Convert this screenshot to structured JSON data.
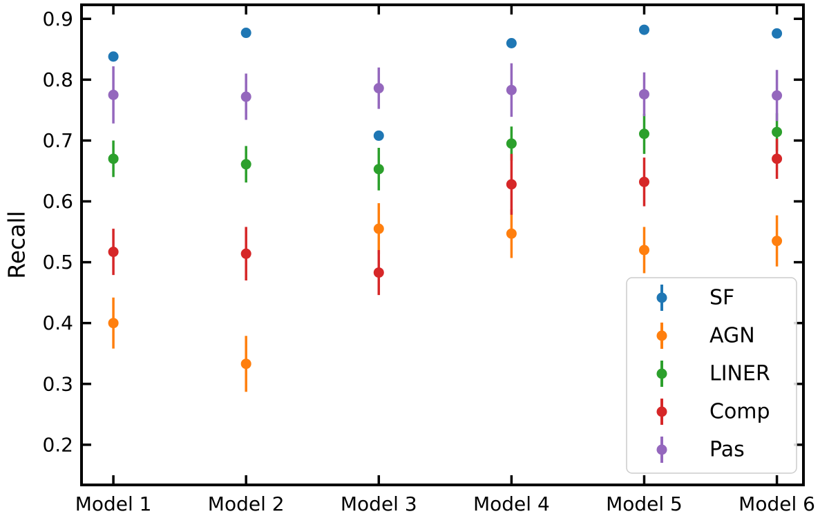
{
  "figure": {
    "ylabel": "Recall",
    "xlabel": ""
  },
  "chart_data": {
    "type": "scatter",
    "title": "",
    "xlabel": "",
    "ylabel": "Recall",
    "categories": [
      "Model 1",
      "Model 2",
      "Model 3",
      "Model 4",
      "Model 5",
      "Model 6"
    ],
    "series": [
      {
        "name": "SF",
        "color": "#1f77b4",
        "values": [
          0.838,
          0.877,
          0.708,
          0.86,
          0.882,
          0.876
        ],
        "errors": [
          0.008,
          0.008,
          0.008,
          0.008,
          0.008,
          0.008
        ]
      },
      {
        "name": "AGN",
        "color": "#ff7f0e",
        "values": [
          0.4,
          0.333,
          0.555,
          0.547,
          0.52,
          0.535
        ],
        "errors": [
          0.042,
          0.046,
          0.042,
          0.04,
          0.038,
          0.042
        ]
      },
      {
        "name": "LINER",
        "color": "#2ca02c",
        "values": [
          0.67,
          0.661,
          0.653,
          0.695,
          0.711,
          0.714
        ],
        "errors": [
          0.03,
          0.03,
          0.035,
          0.028,
          0.033,
          0.031
        ]
      },
      {
        "name": "Comp",
        "color": "#d62728",
        "values": [
          0.517,
          0.514,
          0.483,
          0.628,
          0.632,
          0.67
        ],
        "errors": [
          0.038,
          0.044,
          0.037,
          0.05,
          0.04,
          0.033
        ]
      },
      {
        "name": "Pas",
        "color": "#9467bd",
        "values": [
          0.775,
          0.772,
          0.786,
          0.783,
          0.776,
          0.774
        ],
        "errors": [
          0.047,
          0.038,
          0.034,
          0.044,
          0.036,
          0.042
        ]
      }
    ],
    "y_ticks": [
      "0.9",
      "0.8",
      "0.7",
      "0.6",
      "0.5",
      "0.4",
      "0.3",
      "0.2"
    ],
    "ylim": [
      0.134,
      0.923
    ],
    "xlim": [
      -0.24,
      5.2
    ],
    "grid": false,
    "legend": {
      "position": "lower right",
      "entries": [
        "SF",
        "AGN",
        "LINER",
        "Comp",
        "Pas"
      ]
    }
  },
  "style": {
    "background": "#ffffff",
    "axis_color": "#000000",
    "legend_border": "#cccccc",
    "legend_fill": "#ffffff"
  }
}
